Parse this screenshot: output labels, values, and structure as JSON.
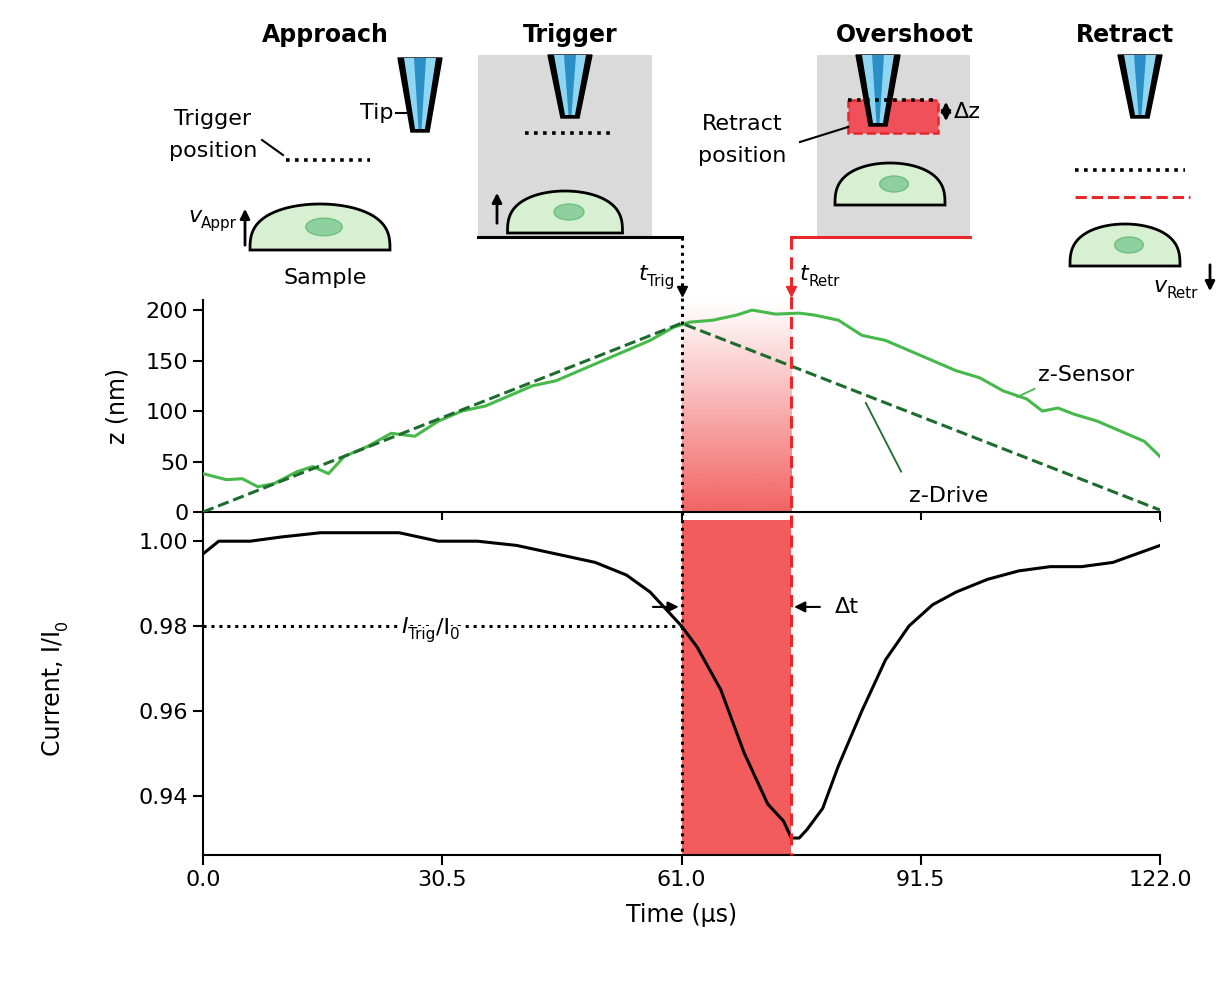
{
  "chart_data": [
    {
      "type": "line",
      "y_label": "z (nm)",
      "xlim": [
        0,
        122
      ],
      "xticks": [
        {
          "value": 0,
          "label": "0.0"
        },
        30.5,
        {
          "value": 61,
          "label": "61.0"
        },
        91.5,
        {
          "value": 122,
          "label": "122.0"
        }
      ],
      "ylim": [
        0,
        210
      ],
      "yticks": [
        0,
        50,
        100,
        150,
        200
      ],
      "tick_labels": "y",
      "series": [
        {
          "name": "z-Sensor",
          "color": "#46b94a",
          "line_style": "solid",
          "x": [
            0,
            3,
            5,
            7,
            9,
            12,
            14,
            16,
            18,
            21,
            24,
            27,
            30,
            33,
            36,
            39,
            42,
            45,
            48,
            51,
            54,
            57,
            60,
            62,
            65,
            68,
            70,
            73,
            76,
            78,
            81,
            84,
            87,
            90,
            93,
            96,
            99,
            102,
            105,
            107,
            109,
            111,
            114,
            117,
            120,
            122
          ],
          "values": [
            38,
            32,
            33,
            25,
            28,
            40,
            45,
            38,
            55,
            65,
            78,
            75,
            90,
            100,
            105,
            115,
            125,
            130,
            140,
            150,
            160,
            170,
            183,
            188,
            190,
            195,
            200,
            196,
            197,
            195,
            190,
            175,
            170,
            160,
            150,
            140,
            133,
            120,
            112,
            100,
            103,
            97,
            90,
            80,
            70,
            55
          ]
        },
        {
          "name": "z-Drive",
          "color": "#1e6b2e",
          "line_style": "dashed",
          "x": [
            0,
            61,
            122
          ],
          "values": [
            0,
            187,
            2
          ]
        }
      ]
    },
    {
      "type": "line",
      "x_label": "Time (µs)",
      "y_label": [
        {
          "text": "Current, I/I"
        },
        {
          "text": "0",
          "sub": true
        }
      ],
      "xlim": [
        0,
        122
      ],
      "xticks": [
        {
          "value": 0,
          "label": "0.0"
        },
        30.5,
        {
          "value": 61,
          "label": "61.0"
        },
        91.5,
        {
          "value": 122,
          "label": "122.0"
        }
      ],
      "ylim": [
        0.926,
        1.005
      ],
      "yticks": [
        0.94,
        0.96,
        0.98,
        {
          "value": 1.0,
          "label": "1.00"
        }
      ],
      "series": [
        {
          "color": "#000000",
          "line_style": "solid",
          "x": [
            0,
            2,
            6,
            10,
            15,
            20,
            25,
            30,
            35,
            40,
            45,
            50,
            54,
            57,
            60,
            61,
            63,
            66,
            69,
            72,
            74,
            75,
            76,
            77,
            79,
            81,
            84,
            87,
            90,
            93,
            96,
            100,
            104,
            108,
            112,
            116,
            119,
            122
          ],
          "values": [
            0.997,
            1.0,
            1.0,
            1.001,
            1.002,
            1.002,
            1.002,
            1.0,
            1.0,
            0.999,
            0.997,
            0.995,
            0.992,
            0.988,
            0.982,
            0.98,
            0.975,
            0.965,
            0.95,
            0.938,
            0.934,
            0.93,
            0.93,
            0.932,
            0.937,
            0.947,
            0.96,
            0.972,
            0.98,
            0.985,
            0.988,
            0.991,
            0.993,
            0.994,
            0.994,
            0.995,
            0.997,
            0.999
          ]
        }
      ]
    }
  ],
  "markers": {
    "trigger_time": 61,
    "trigger_label": [
      {
        "text": "t"
      },
      {
        "text": "Trig",
        "sub": true
      }
    ],
    "retract_time": 75,
    "retract_label": [
      {
        "text": "t"
      },
      {
        "text": "Retr",
        "sub": true
      }
    ],
    "interval_label": "Δt",
    "trigger_current": 0.98,
    "trigger_current_label": [
      {
        "text": "I"
      },
      {
        "text": "Trig",
        "sub": true
      },
      {
        "text": "/I"
      },
      {
        "text": "0",
        "sub": true
      }
    ]
  },
  "schematic": {
    "steps": [
      "Approach",
      "Trigger",
      "Overshoot",
      "Retract"
    ],
    "tip_label": "Tip",
    "trigger_position_label": "Trigger position",
    "retract_position_label": "Retract position",
    "sample_label": "Sample",
    "delta_z_label": "Δz",
    "approach_speed_label": [
      {
        "text": "v"
      },
      {
        "text": "Appr",
        "sub": true
      }
    ],
    "retract_speed_label": [
      {
        "text": "v"
      },
      {
        "text": "Retr",
        "sub": true
      }
    ]
  }
}
